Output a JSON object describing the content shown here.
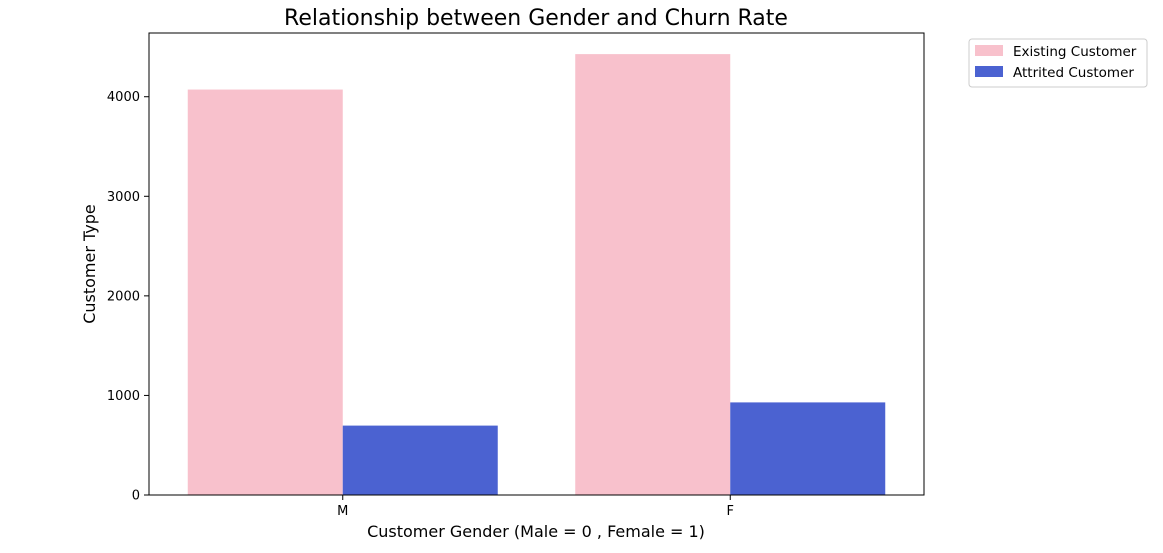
{
  "chart_data": {
    "type": "bar",
    "title": "Relationship between Gender and Churn Rate",
    "xlabel": "Customer Gender (Male = 0 , Female = 1)",
    "ylabel": "Customer Type",
    "categories": [
      "M",
      "F"
    ],
    "series": [
      {
        "name": "Existing Customer",
        "color": "#f8c1cc",
        "values": [
          4072,
          4428
        ]
      },
      {
        "name": "Attrited Customer",
        "color": "#4b62d1",
        "values": [
          697,
          930
        ]
      }
    ],
    "ylim": [
      0,
      4640
    ],
    "yticks": [
      0,
      1000,
      2000,
      3000,
      4000
    ],
    "grid": false,
    "legend": "outside-top-right"
  }
}
